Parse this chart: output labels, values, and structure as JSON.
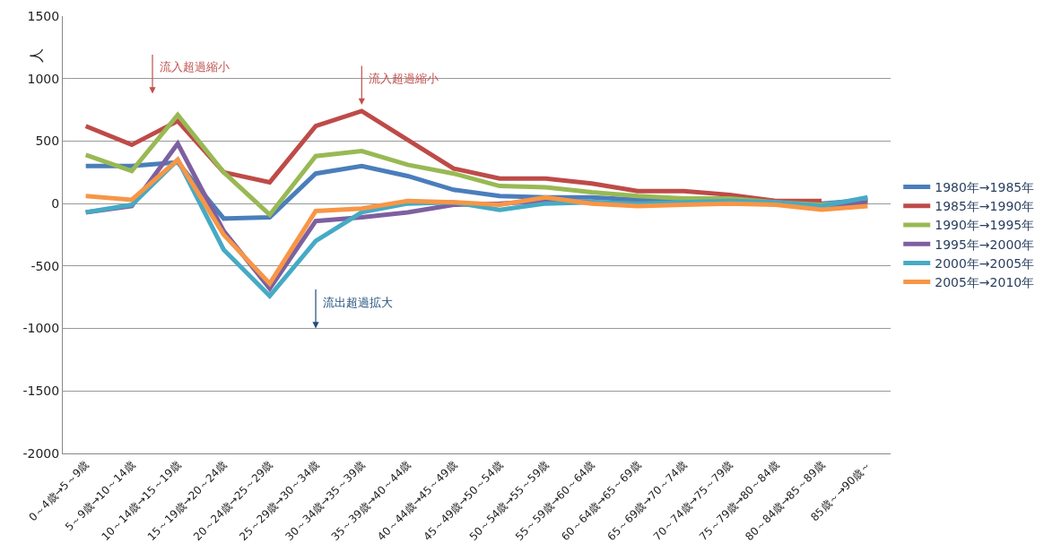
{
  "chart_data": {
    "type": "line",
    "ylabel": "人",
    "categories": [
      "0～4歳→5～9歳",
      "5～9歳→10～14歳",
      "10～14歳→15～19歳",
      "15～19歳→20～24歳",
      "20～24歳→25～29歳",
      "25～29歳→30～34歳",
      "30～34歳→35～39歳",
      "35～39歳→40～44歳",
      "40～44歳→45～49歳",
      "45～49歳→50～54歳",
      "50～54歳→55～59歳",
      "55～59歳→60～64歳",
      "60～64歳→65～69歳",
      "65～69歳→70～74歳",
      "70～74歳→75～79歳",
      "75～79歳→80～84歳",
      "80～84歳→85～89歳",
      "85歳～→90歳～"
    ],
    "series": [
      {
        "name": "1980年→1985年",
        "color": "#4a7ebb",
        "values": [
          300,
          300,
          330,
          -120,
          -110,
          240,
          300,
          220,
          110,
          60,
          50,
          50,
          30,
          20,
          20,
          10,
          0,
          30
        ]
      },
      {
        "name": "1985年→1990年",
        "color": "#be4b48",
        "values": [
          620,
          470,
          660,
          250,
          170,
          620,
          740,
          510,
          280,
          200,
          200,
          160,
          100,
          100,
          70,
          20,
          20,
          null
        ]
      },
      {
        "name": "1990年→1995年",
        "color": "#98b954",
        "values": [
          390,
          260,
          710,
          250,
          -90,
          380,
          420,
          310,
          240,
          140,
          130,
          90,
          60,
          40,
          40,
          10,
          -10,
          30
        ]
      },
      {
        "name": "1995年→2000年",
        "color": "#7d60a0",
        "values": [
          -70,
          -20,
          480,
          -220,
          -680,
          -140,
          -110,
          -70,
          -10,
          0,
          20,
          10,
          0,
          0,
          0,
          0,
          -30,
          10
        ]
      },
      {
        "name": "2000年→2005年",
        "color": "#46aac5",
        "values": [
          -70,
          -10,
          350,
          -370,
          -740,
          -300,
          -70,
          0,
          10,
          -50,
          0,
          10,
          0,
          10,
          20,
          10,
          -20,
          50
        ]
      },
      {
        "name": "2005年→2010年",
        "color": "#f79646",
        "values": [
          60,
          30,
          350,
          -250,
          -640,
          -60,
          -40,
          20,
          10,
          -10,
          50,
          0,
          -20,
          -10,
          0,
          -10,
          -50,
          -20
        ]
      }
    ],
    "annotations": [
      "流入超過縮小",
      "流入超過縮小",
      "流出超過拡大"
    ],
    "ylim": [
      -2000,
      1500
    ],
    "yticks": [
      -2000,
      -1500,
      -1000,
      -500,
      0,
      500,
      1000,
      1500
    ],
    "grid": "y",
    "legend": "right",
    "marker": "none",
    "line_style": "solid"
  }
}
